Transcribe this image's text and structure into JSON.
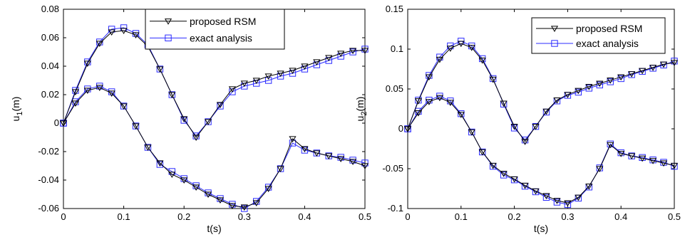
{
  "colors": {
    "proposed": "#000000",
    "exact": "#2b2bff",
    "axis": "#000000",
    "background": "#ffffff"
  },
  "markers": {
    "proposed": "triangle-down",
    "exact": "square"
  },
  "chart_data": [
    {
      "type": "line",
      "title": "",
      "xlabel": "t(s)",
      "ylabel": "u",
      "ylabel_sub": "1",
      "ylabel_unit": "(m)",
      "xlim": [
        0,
        0.5
      ],
      "ylim": [
        -0.06,
        0.08
      ],
      "xticks": [
        0,
        0.1,
        0.2,
        0.3,
        0.4,
        0.5
      ],
      "xtick_labels": [
        "0",
        "0.1",
        "0.2",
        "0.3",
        "0.4",
        "0.5"
      ],
      "yticks": [
        -0.06,
        -0.04,
        -0.02,
        0,
        0.02,
        0.04,
        0.06,
        0.08
      ],
      "ytick_labels": [
        "-0.06",
        "-0.04",
        "-0.02",
        "0",
        "0.02",
        "0.04",
        "0.06",
        "0.08"
      ],
      "grid": false,
      "legend": {
        "placement": "top-right",
        "entries": [
          "proposed RSM",
          "exact analysis"
        ]
      },
      "x": [
        0,
        0.02,
        0.04,
        0.06,
        0.08,
        0.1,
        0.12,
        0.14,
        0.16,
        0.18,
        0.2,
        0.22,
        0.24,
        0.26,
        0.28,
        0.3,
        0.32,
        0.34,
        0.36,
        0.38,
        0.4,
        0.42,
        0.44,
        0.46,
        0.48,
        0.5
      ],
      "series": [
        {
          "name": "proposed RSM",
          "style": "proposed",
          "branch": "upper",
          "values": [
            0,
            0.022,
            0.042,
            0.056,
            0.064,
            0.065,
            0.062,
            0.054,
            0.038,
            0.02,
            0.003,
            -0.01,
            0.001,
            0.013,
            0.024,
            0.028,
            0.03,
            0.033,
            0.035,
            0.037,
            0.04,
            0.043,
            0.046,
            0.049,
            0.051,
            0.051
          ]
        },
        {
          "name": "exact analysis",
          "style": "exact",
          "branch": "upper",
          "values": [
            0,
            0.023,
            0.043,
            0.057,
            0.066,
            0.067,
            0.063,
            0.055,
            0.038,
            0.02,
            0.002,
            -0.009,
            0.001,
            0.012,
            0.022,
            0.026,
            0.028,
            0.03,
            0.033,
            0.035,
            0.038,
            0.041,
            0.044,
            0.047,
            0.05,
            0.052
          ]
        },
        {
          "name": "proposed RSM",
          "style": "proposed",
          "branch": "lower",
          "values": [
            0,
            0.014,
            0.023,
            0.025,
            0.021,
            0.012,
            -0.002,
            -0.017,
            -0.028,
            -0.036,
            -0.04,
            -0.045,
            -0.05,
            -0.054,
            -0.058,
            -0.059,
            -0.056,
            -0.046,
            -0.032,
            -0.011,
            -0.018,
            -0.021,
            -0.023,
            -0.025,
            -0.027,
            -0.03
          ]
        },
        {
          "name": "exact analysis",
          "style": "exact",
          "branch": "lower",
          "values": [
            0,
            0.015,
            0.024,
            0.026,
            0.022,
            0.012,
            -0.002,
            -0.017,
            -0.029,
            -0.034,
            -0.039,
            -0.044,
            -0.049,
            -0.053,
            -0.057,
            -0.06,
            -0.055,
            -0.045,
            -0.032,
            -0.014,
            -0.019,
            -0.021,
            -0.023,
            -0.024,
            -0.026,
            -0.028
          ]
        }
      ]
    },
    {
      "type": "line",
      "title": "",
      "xlabel": "t(s)",
      "ylabel": "u",
      "ylabel_sub": "2",
      "ylabel_unit": "(m)",
      "xlim": [
        0,
        0.5
      ],
      "ylim": [
        -0.1,
        0.15
      ],
      "xticks": [
        0,
        0.1,
        0.2,
        0.3,
        0.4,
        0.5
      ],
      "xtick_labels": [
        "0",
        "0.1",
        "0.2",
        "0.3",
        "0.4",
        "0.5"
      ],
      "yticks": [
        -0.1,
        -0.05,
        0,
        0.05,
        0.1,
        0.15
      ],
      "ytick_labels": [
        "-0.1",
        "-0.05",
        "0",
        "0.05",
        "0.1",
        "0.15"
      ],
      "grid": false,
      "legend": {
        "placement": "top-right",
        "entries": [
          "proposed RSM",
          "exact analysis"
        ]
      },
      "x": [
        0,
        0.02,
        0.04,
        0.06,
        0.08,
        0.1,
        0.12,
        0.14,
        0.16,
        0.18,
        0.2,
        0.22,
        0.24,
        0.26,
        0.28,
        0.3,
        0.32,
        0.34,
        0.36,
        0.38,
        0.4,
        0.42,
        0.44,
        0.46,
        0.48,
        0.5
      ],
      "series": [
        {
          "name": "proposed RSM",
          "style": "proposed",
          "branch": "upper",
          "values": [
            0,
            0.035,
            0.065,
            0.087,
            0.101,
            0.107,
            0.102,
            0.086,
            0.062,
            0.032,
            0.003,
            -0.016,
            0.003,
            0.022,
            0.036,
            0.043,
            0.048,
            0.053,
            0.057,
            0.061,
            0.065,
            0.069,
            0.073,
            0.077,
            0.081,
            0.083
          ]
        },
        {
          "name": "exact analysis",
          "style": "exact",
          "branch": "upper",
          "values": [
            0,
            0.036,
            0.067,
            0.09,
            0.104,
            0.11,
            0.104,
            0.088,
            0.063,
            0.031,
            0.001,
            -0.014,
            0.003,
            0.021,
            0.035,
            0.042,
            0.046,
            0.051,
            0.055,
            0.059,
            0.063,
            0.068,
            0.072,
            0.076,
            0.08,
            0.085
          ]
        },
        {
          "name": "proposed RSM",
          "style": "proposed",
          "branch": "lower",
          "values": [
            0,
            0.02,
            0.034,
            0.039,
            0.033,
            0.018,
            -0.004,
            -0.029,
            -0.046,
            -0.056,
            -0.063,
            -0.071,
            -0.078,
            -0.084,
            -0.09,
            -0.093,
            -0.086,
            -0.072,
            -0.05,
            -0.02,
            -0.031,
            -0.034,
            -0.037,
            -0.04,
            -0.043,
            -0.046
          ]
        },
        {
          "name": "exact analysis",
          "style": "exact",
          "branch": "lower",
          "values": [
            0,
            0.022,
            0.036,
            0.041,
            0.035,
            0.019,
            -0.004,
            -0.029,
            -0.047,
            -0.058,
            -0.064,
            -0.072,
            -0.079,
            -0.086,
            -0.092,
            -0.095,
            -0.087,
            -0.073,
            -0.049,
            -0.019,
            -0.03,
            -0.034,
            -0.036,
            -0.039,
            -0.042,
            -0.047
          ]
        }
      ]
    }
  ]
}
